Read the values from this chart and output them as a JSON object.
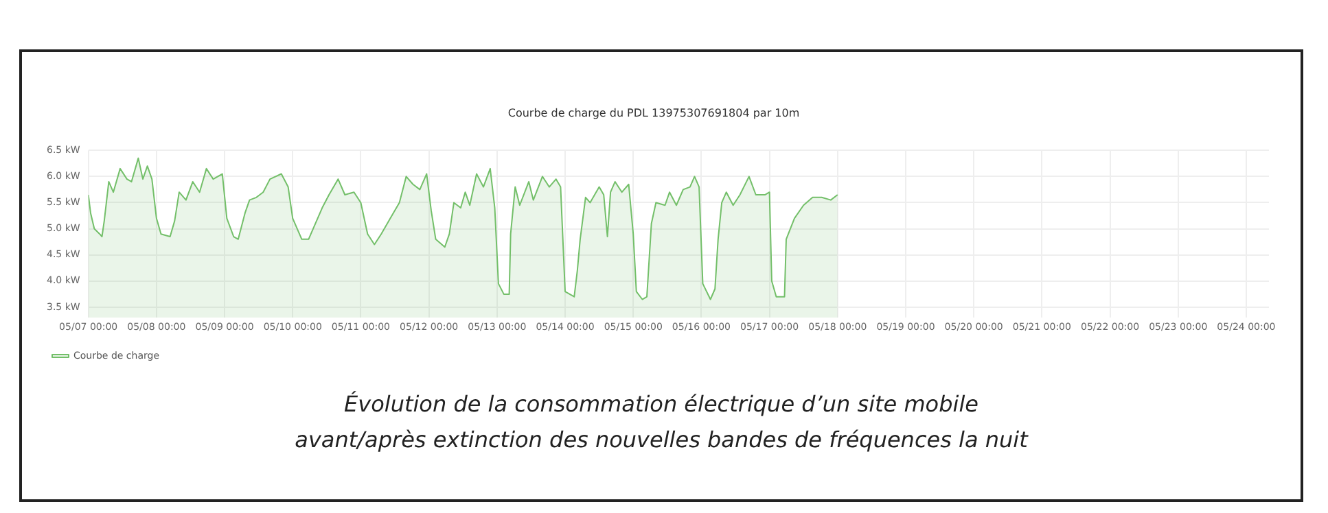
{
  "chart_data": {
    "type": "area",
    "title": "Courbe de charge du PDL 13975307691804 par 10m",
    "x": [
      "--05-07T00:00",
      "--05-07T00:48",
      "--05-07T02:06",
      "--05-07T04:00",
      "--05-07T04:48",
      "--05-07T05:36",
      "--05-07T07:12",
      "--05-07T08:48",
      "--05-07T11:12",
      "--05-07T13:36",
      "--05-07T15:12",
      "--05-07T17:36",
      "--05-07T19:12",
      "--05-07T20:48",
      "--05-07T22:24",
      "--05-08T00:00",
      "--05-08T01:36",
      "--05-08T04:48",
      "--05-08T06:24",
      "--05-08T08:00",
      "--05-08T10:24",
      "--05-08T12:48",
      "--05-08T15:12",
      "--05-08T17:36",
      "--05-08T20:00",
      "--05-08T23:12",
      "--05-09T00:48",
      "--05-09T03:12",
      "--05-09T04:48",
      "--05-09T07:12",
      "--05-09T08:48",
      "--05-09T11:12",
      "--05-09T13:36",
      "--05-09T16:00",
      "--05-09T20:00",
      "--05-09T22:24",
      "--05-10T00:00",
      "--05-10T03:12",
      "--05-10T05:36",
      "--05-10T07:12",
      "--05-10T10:24",
      "--05-10T12:48",
      "--05-10T16:00",
      "--05-10T18:24",
      "--05-10T21:36",
      "--05-11T00:00",
      "--05-11T02:24",
      "--05-11T04:48",
      "--05-11T07:12",
      "--05-11T10:24",
      "--05-11T13:36",
      "--05-11T16:00",
      "--05-11T18:24",
      "--05-11T20:48",
      "--05-11T23:12",
      "--05-12T00:48",
      "--05-12T02:24",
      "--05-12T05:36",
      "--05-12T07:12",
      "--05-12T08:48",
      "--05-12T11:12",
      "--05-12T12:48",
      "--05-12T14:24",
      "--05-12T16:48",
      "--05-12T19:12",
      "--05-12T21:36",
      "--05-12T23:12",
      "--05-13T00:30",
      "--05-13T02:24",
      "--05-13T04:18",
      "--05-13T04:48",
      "--05-13T06:24",
      "--05-13T08:00",
      "--05-13T11:12",
      "--05-13T12:48",
      "--05-13T16:00",
      "--05-13T18:24",
      "--05-13T20:48",
      "--05-13T22:24",
      "--05-14T00:00",
      "--05-14T03:12",
      "--05-14T04:18",
      "--05-14T05:18",
      "--05-14T07:12",
      "--05-14T08:48",
      "--05-14T12:00",
      "--05-14T13:36",
      "--05-14T14:54",
      "--05-14T16:00",
      "--05-14T17:36",
      "--05-14T20:00",
      "--05-14T22:24",
      "--05-15T00:00",
      "--05-15T01:06",
      "--05-15T03:12",
      "--05-15T04:48",
      "--05-15T06:24",
      "--05-15T08:00",
      "--05-15T11:12",
      "--05-15T12:48",
      "--05-15T15:12",
      "--05-15T17:36",
      "--05-15T20:00",
      "--05-15T21:36",
      "--05-15T23:12",
      "--05-16T00:30",
      "--05-16T03:12",
      "--05-16T04:48",
      "--05-16T05:54",
      "--05-16T07:12",
      "--05-16T08:48",
      "--05-16T11:12",
      "--05-16T13:36",
      "--05-16T16:48",
      "--05-16T19:12",
      "--05-16T22:24",
      "--05-17T00:00",
      "--05-17T00:48",
      "--05-17T02:24",
      "--05-17T05:18",
      "--05-17T05:54",
      "--05-17T08:48",
      "--05-17T12:00",
      "--05-17T15:12",
      "--05-17T18:24",
      "--05-17T21:36",
      "--05-18T00:00"
    ],
    "series": [
      {
        "name": "Courbe de charge",
        "color": "#73bf69",
        "values": [
          5.65,
          5.3,
          5.0,
          4.9,
          4.85,
          5.15,
          5.9,
          5.7,
          6.15,
          5.95,
          5.9,
          6.35,
          5.95,
          6.2,
          5.95,
          5.2,
          4.9,
          4.85,
          5.15,
          5.7,
          5.55,
          5.9,
          5.7,
          6.15,
          5.95,
          6.05,
          5.2,
          4.85,
          4.8,
          5.3,
          5.55,
          5.6,
          5.7,
          5.95,
          6.05,
          5.8,
          5.2,
          4.8,
          4.8,
          5.0,
          5.4,
          5.65,
          5.95,
          5.65,
          5.7,
          5.5,
          4.9,
          4.7,
          4.9,
          5.2,
          5.5,
          6.0,
          5.85,
          5.75,
          6.05,
          5.35,
          4.8,
          4.65,
          4.9,
          5.5,
          5.4,
          5.7,
          5.45,
          6.05,
          5.8,
          6.15,
          5.4,
          3.95,
          3.75,
          3.75,
          4.9,
          5.8,
          5.45,
          5.9,
          5.55,
          6.0,
          5.8,
          5.95,
          5.8,
          3.8,
          3.7,
          4.2,
          4.8,
          5.6,
          5.5,
          5.8,
          5.65,
          4.85,
          5.7,
          5.9,
          5.7,
          5.85,
          4.9,
          3.8,
          3.65,
          3.7,
          5.1,
          5.5,
          5.45,
          5.7,
          5.45,
          5.75,
          5.8,
          6.0,
          5.8,
          3.95,
          3.65,
          3.85,
          4.8,
          5.5,
          5.7,
          5.45,
          5.65,
          6.0,
          5.65,
          5.65,
          5.7,
          4.0,
          3.7,
          3.7,
          4.8,
          5.2,
          5.45,
          5.6,
          5.6,
          5.55,
          5.65
        ]
      }
    ],
    "xlim": [
      "--05-07T00:00",
      "--05-24T08:00"
    ],
    "xticks": [
      {
        "value": "--05-07T00:00",
        "label": "05/07 00:00"
      },
      {
        "value": "--05-08T00:00",
        "label": "05/08 00:00"
      },
      {
        "value": "--05-09T00:00",
        "label": "05/09 00:00"
      },
      {
        "value": "--05-10T00:00",
        "label": "05/10 00:00"
      },
      {
        "value": "--05-11T00:00",
        "label": "05/11 00:00"
      },
      {
        "value": "--05-12T00:00",
        "label": "05/12 00:00"
      },
      {
        "value": "--05-13T00:00",
        "label": "05/13 00:00"
      },
      {
        "value": "--05-14T00:00",
        "label": "05/14 00:00"
      },
      {
        "value": "--05-15T00:00",
        "label": "05/15 00:00"
      },
      {
        "value": "--05-16T00:00",
        "label": "05/16 00:00"
      },
      {
        "value": "--05-17T00:00",
        "label": "05/17 00:00"
      },
      {
        "value": "--05-18T00:00",
        "label": "05/18 00:00"
      },
      {
        "value": "--05-19T00:00",
        "label": "05/19 00:00"
      },
      {
        "value": "--05-20T00:00",
        "label": "05/20 00:00"
      },
      {
        "value": "--05-21T00:00",
        "label": "05/21 00:00"
      },
      {
        "value": "--05-22T00:00",
        "label": "05/22 00:00"
      },
      {
        "value": "--05-23T00:00",
        "label": "05/23 00:00"
      },
      {
        "value": "--05-24T00:00",
        "label": "05/24 00:00"
      }
    ],
    "ylim": [
      3.3,
      6.5
    ],
    "yticks": [
      {
        "value": 3.5,
        "label": "3.5 kW"
      },
      {
        "value": 4,
        "label": "4.0 kW"
      },
      {
        "value": 4.5,
        "label": "4.5 kW"
      },
      {
        "value": 5,
        "label": "5.0 kW"
      },
      {
        "value": 5.5,
        "label": "5.5 kW"
      },
      {
        "value": 6,
        "label": "6.0 kW"
      },
      {
        "value": 6.5,
        "label": "6.5 kW"
      }
    ],
    "grid": true,
    "legend": "bottom left",
    "marker": "none",
    "line_style": "solid",
    "annotations": [
      "Évolution de la consommation électrique d’un site mobile",
      "avant/après extinction des nouvelles bandes de fréquences la nuit"
    ]
  }
}
